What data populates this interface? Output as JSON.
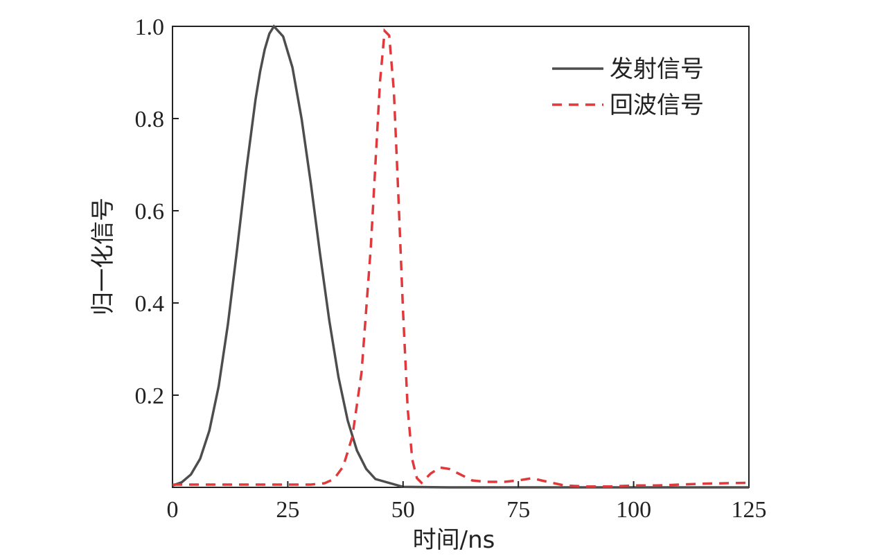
{
  "chart_data": {
    "type": "line",
    "title": "",
    "xlabel": "时间/ns",
    "ylabel": "归一化信号",
    "xlim": [
      0,
      125
    ],
    "ylim": [
      0,
      1.0
    ],
    "x_ticks": [
      0,
      25,
      50,
      75,
      100,
      125
    ],
    "x_tick_labels": [
      "0",
      "25",
      "50",
      "75",
      "100",
      "125"
    ],
    "y_ticks": [
      0.2,
      0.4,
      0.6,
      0.8,
      1.0
    ],
    "y_tick_labels": [
      "0.2",
      "0.4",
      "0.6",
      "0.8",
      "1.0"
    ],
    "grid": false,
    "legend_position": "top-right",
    "series": [
      {
        "name": "发射信号",
        "style": "solid",
        "color": "#4d4d4d",
        "x": [
          0,
          2,
          4,
          6,
          8,
          10,
          12,
          14,
          16,
          18,
          19,
          20,
          21,
          22,
          24,
          26,
          28,
          30,
          32,
          34,
          36,
          38,
          40,
          42,
          44,
          50,
          60,
          80,
          100,
          125
        ],
        "y": [
          0.004,
          0.011,
          0.028,
          0.062,
          0.123,
          0.219,
          0.353,
          0.516,
          0.688,
          0.841,
          0.902,
          0.95,
          0.984,
          1.0,
          0.978,
          0.911,
          0.799,
          0.659,
          0.506,
          0.362,
          0.239,
          0.145,
          0.08,
          0.04,
          0.018,
          0.001,
          0.0,
          0.0,
          0.0,
          0.0
        ]
      },
      {
        "name": "回波信号",
        "style": "dashed",
        "color": "#e0393c",
        "x": [
          0,
          5,
          10,
          20,
          30,
          33,
          35,
          37,
          39,
          41,
          43,
          45,
          46,
          47,
          48,
          49,
          50,
          51,
          52,
          53,
          54,
          56,
          58,
          60,
          62,
          65,
          68,
          72,
          75,
          78,
          80,
          85,
          90,
          95,
          100,
          105,
          110,
          115,
          120,
          125
        ],
        "y": [
          0.006,
          0.006,
          0.006,
          0.006,
          0.006,
          0.009,
          0.018,
          0.045,
          0.11,
          0.25,
          0.52,
          0.88,
          0.99,
          0.98,
          0.86,
          0.63,
          0.38,
          0.17,
          0.06,
          0.02,
          0.01,
          0.03,
          0.043,
          0.04,
          0.03,
          0.015,
          0.012,
          0.012,
          0.015,
          0.02,
          0.015,
          0.004,
          0.002,
          0.002,
          0.004,
          0.004,
          0.006,
          0.008,
          0.009,
          0.01
        ]
      }
    ]
  },
  "colors": {
    "axis": "#222222",
    "emit": "#4d4d4d",
    "echo": "#e0393c"
  }
}
